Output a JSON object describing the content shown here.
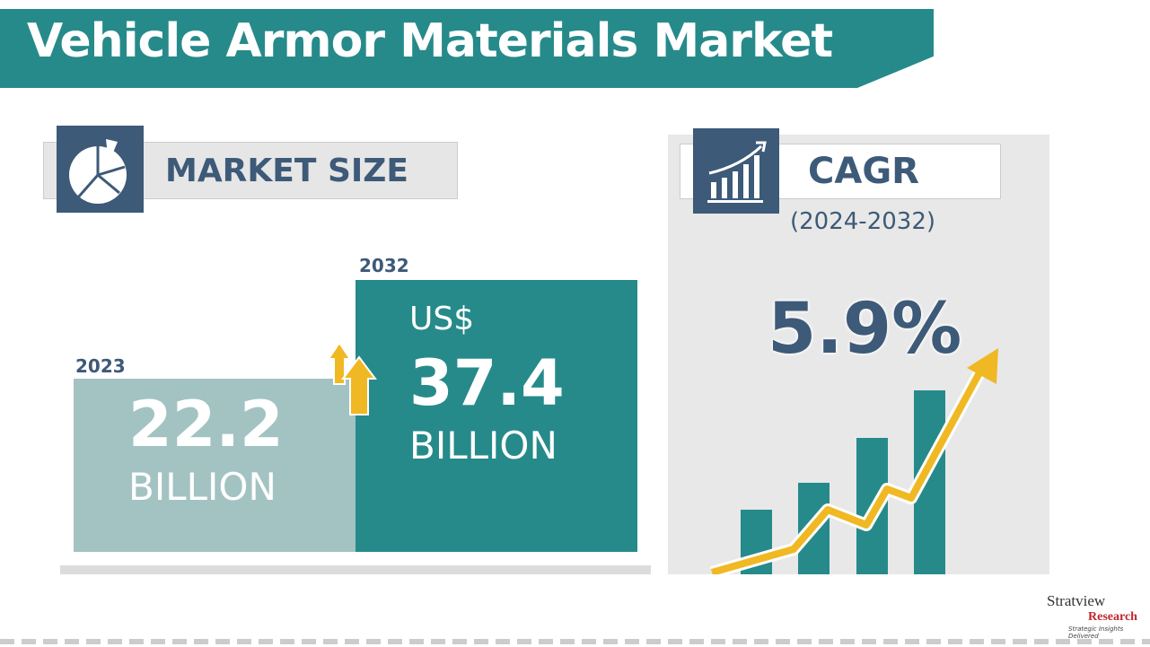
{
  "title": "Vehicle Armor Materials Market",
  "market_size": {
    "label": "MARKET SIZE",
    "icon": "pie-chart-icon",
    "y2023": {
      "year": "2023",
      "value": "22.2",
      "unit": "BILLION"
    },
    "y2032": {
      "year": "2032",
      "currency": "US$",
      "value": "37.4",
      "unit": "BILLION"
    }
  },
  "cagr": {
    "label": "CAGR",
    "icon": "bar-growth-icon",
    "period": "(2024-2032)",
    "value": "5.9%"
  },
  "logo": {
    "name": "Stratview",
    "sub": "Research",
    "tagline": "Strategic Insights Delivered"
  },
  "colors": {
    "teal": "#268a8a",
    "light_teal": "#a3c3c3",
    "navy": "#3d5a78",
    "yellow": "#f0b823"
  }
}
